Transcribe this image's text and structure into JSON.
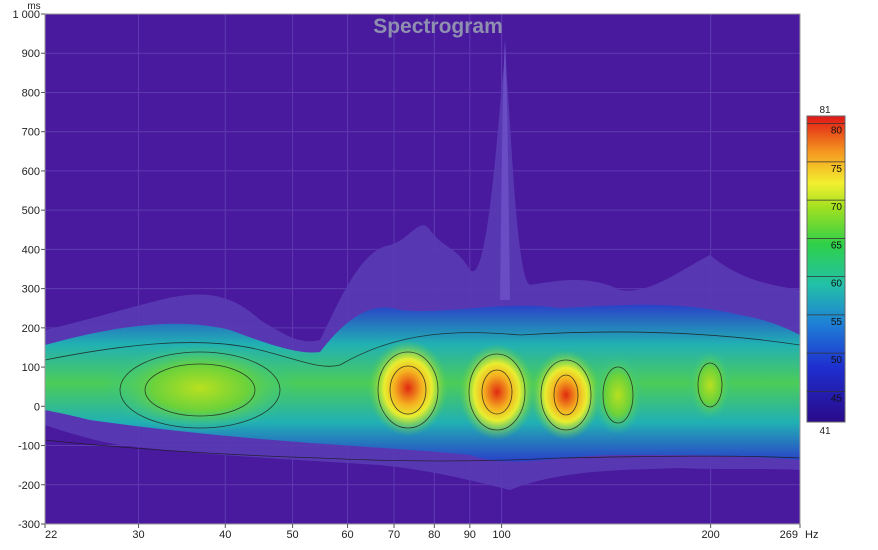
{
  "chart_data": {
    "type": "heatmap",
    "title": "Spectrogram",
    "y_unit": "ms",
    "x_unit": "Hz",
    "x_scale": "log",
    "x_range": [
      22,
      269
    ],
    "y_range": [
      -300,
      1000
    ],
    "x_ticks": [
      {
        "value": 22,
        "label": "22"
      },
      {
        "value": 30,
        "label": "30"
      },
      {
        "value": 40,
        "label": "40"
      },
      {
        "value": 50,
        "label": "50"
      },
      {
        "value": 60,
        "label": "60"
      },
      {
        "value": 70,
        "label": "70"
      },
      {
        "value": 80,
        "label": "80"
      },
      {
        "value": 90,
        "label": "90"
      },
      {
        "value": 100,
        "label": "100"
      },
      {
        "value": 200,
        "label": "200"
      },
      {
        "value": 269,
        "label": "269"
      }
    ],
    "y_ticks": [
      {
        "value": 1000,
        "label": "1 000"
      },
      {
        "value": 900,
        "label": "900"
      },
      {
        "value": 800,
        "label": "800"
      },
      {
        "value": 700,
        "label": "700"
      },
      {
        "value": 600,
        "label": "600"
      },
      {
        "value": 500,
        "label": "500"
      },
      {
        "value": 400,
        "label": "400"
      },
      {
        "value": 300,
        "label": "300"
      },
      {
        "value": 200,
        "label": "200"
      },
      {
        "value": 100,
        "label": "100"
      },
      {
        "value": 0,
        "label": "0"
      },
      {
        "value": -100,
        "label": "-100"
      },
      {
        "value": -200,
        "label": "-200"
      },
      {
        "value": -300,
        "label": "-300"
      }
    ],
    "colorbar": {
      "min": 41,
      "max": 81,
      "min_label": "41",
      "max_label": "81",
      "ticks": [
        {
          "value": 80,
          "label": "80"
        },
        {
          "value": 75,
          "label": "75"
        },
        {
          "value": 70,
          "label": "70"
        },
        {
          "value": 65,
          "label": "65"
        },
        {
          "value": 60,
          "label": "60"
        },
        {
          "value": 55,
          "label": "55"
        },
        {
          "value": 50,
          "label": "50"
        },
        {
          "value": 45,
          "label": "45"
        }
      ]
    },
    "background_color": "#4a1a9e",
    "hotspots": [
      {
        "freq": 37,
        "time": 30,
        "level": 67
      },
      {
        "freq": 73,
        "time": 40,
        "level": 76
      },
      {
        "freq": 98,
        "time": 30,
        "level": 80
      },
      {
        "freq": 120,
        "time": 25,
        "level": 79
      },
      {
        "freq": 140,
        "time": 20,
        "level": 71
      },
      {
        "freq": 200,
        "time": 50,
        "level": 70
      }
    ]
  }
}
